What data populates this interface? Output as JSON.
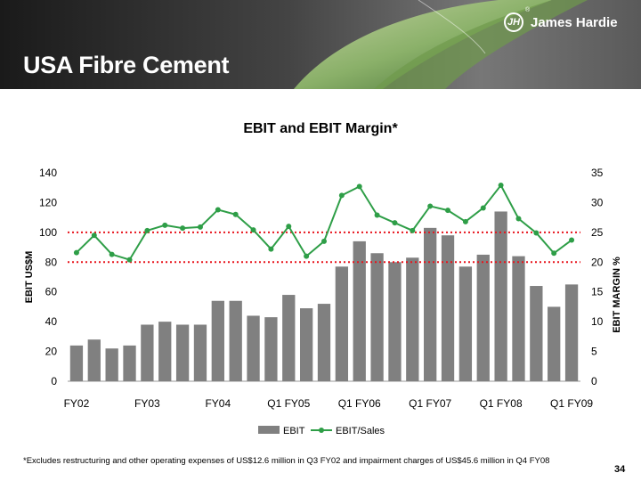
{
  "slide": {
    "title": "USA Fibre Cement",
    "footnote": "*Excludes restructuring and other operating expenses of US$12.6 million in Q3 FY02 and impairment charges of US$45.6 million in Q4 FY08",
    "page_number": "34"
  },
  "logo": {
    "text": "James Hardie",
    "mark": "JH",
    "registered": "®"
  },
  "chart_data": {
    "type": "bar",
    "title": "EBIT and EBIT Margin*",
    "ylabel": "EBIT US$M",
    "y2label": "EBIT MARGIN %",
    "ylim": [
      0,
      140
    ],
    "y2lim": [
      0,
      35
    ],
    "yticks": [
      0,
      20,
      40,
      60,
      80,
      100,
      120,
      140
    ],
    "y2ticks": [
      0,
      5,
      10,
      15,
      20,
      25,
      30,
      35
    ],
    "x_labels": [
      {
        "index": 0,
        "label": "FY02"
      },
      {
        "index": 4,
        "label": "FY03"
      },
      {
        "index": 8,
        "label": "FY04"
      },
      {
        "index": 12,
        "label": "Q1 FY05"
      },
      {
        "index": 16,
        "label": "Q1 FY06"
      },
      {
        "index": 20,
        "label": "Q1 FY07"
      },
      {
        "index": 24,
        "label": "Q1 FY08"
      },
      {
        "index": 28,
        "label": "Q1 FY09"
      }
    ],
    "series": [
      {
        "name": "EBIT",
        "type": "bar",
        "axis": "left",
        "color": "#808080",
        "values": [
          24,
          28,
          22,
          24,
          38,
          40,
          38,
          38,
          54,
          54,
          44,
          43,
          58,
          49,
          52,
          77,
          94,
          86,
          80,
          83,
          103,
          98,
          77,
          85,
          114,
          84,
          64,
          50,
          65
        ]
      },
      {
        "name": "EBIT/Sales",
        "type": "line",
        "axis": "right",
        "color": "#2e9e47",
        "values": [
          21.6,
          24.5,
          21.3,
          20.4,
          25.3,
          26.2,
          25.7,
          25.9,
          28.8,
          28.0,
          25.4,
          22.2,
          26.0,
          21.0,
          23.5,
          31.2,
          32.7,
          27.9,
          26.6,
          25.3,
          29.4,
          28.7,
          26.8,
          29.1,
          32.9,
          27.3,
          24.9,
          21.5,
          23.7
        ]
      }
    ],
    "reference_lines": [
      {
        "axis": "right",
        "value": 25,
        "color": "#e8141c"
      },
      {
        "axis": "right",
        "value": 20,
        "color": "#e8141c"
      }
    ],
    "legend_position": "bottom",
    "grid": false
  }
}
